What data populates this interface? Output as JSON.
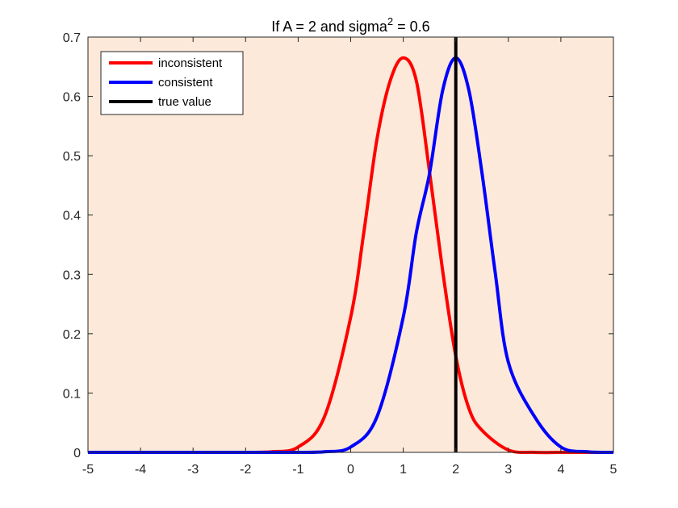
{
  "chart_data": {
    "type": "line",
    "title": {
      "main": "If A = 2 and sigma",
      "superscript": "2",
      "suffix": " = 0.6"
    },
    "xlabel": "",
    "ylabel": "",
    "xlim": [
      -5,
      5
    ],
    "ylim": [
      0,
      0.7
    ],
    "xticks": [
      "-5",
      "-4",
      "-3",
      "-2",
      "-1",
      "0",
      "1",
      "2",
      "3",
      "4",
      "5"
    ],
    "yticks": [
      "0",
      "0.1",
      "0.2",
      "0.3",
      "0.4",
      "0.5",
      "0.6",
      "0.7"
    ],
    "grid": false,
    "legend_position": "top-left",
    "background_color": "#fde9d9",
    "series": [
      {
        "name": "inconsistent",
        "color": "#ff0000",
        "x": [
          -5,
          -4.5,
          -4,
          -3.5,
          -3,
          -2.5,
          -2,
          -1.5,
          -1,
          -0.5,
          0,
          0.25,
          0.5,
          0.75,
          1,
          1.25,
          1.5,
          1.75,
          2,
          2.25,
          2.5,
          3,
          3.5,
          4,
          4.5,
          5
        ],
        "values": [
          0,
          0,
          0,
          0,
          0,
          0,
          0,
          0.001,
          0.009,
          0.06,
          0.228,
          0.371,
          0.528,
          0.626,
          0.665,
          0.626,
          0.473,
          0.306,
          0.162,
          0.074,
          0.037,
          0.004,
          0,
          0,
          0,
          0
        ]
      },
      {
        "name": "consistent",
        "color": "#0000ff",
        "x": [
          -5,
          -4.5,
          -4,
          -3.5,
          -3,
          -2.5,
          -2,
          -1.5,
          -1,
          -0.5,
          0,
          0.5,
          1,
          1.25,
          1.5,
          1.75,
          2,
          2.25,
          2.5,
          2.75,
          3,
          3.5,
          4,
          4.5,
          5
        ],
        "values": [
          0,
          0,
          0,
          0,
          0,
          0,
          0,
          0,
          0,
          0.001,
          0.009,
          0.06,
          0.228,
          0.371,
          0.47,
          0.61,
          0.665,
          0.61,
          0.47,
          0.303,
          0.152,
          0.06,
          0.009,
          0.001,
          0
        ]
      },
      {
        "name": "true value",
        "color": "#000000",
        "x": [
          2,
          2
        ],
        "values": [
          0,
          0.7
        ]
      }
    ]
  }
}
